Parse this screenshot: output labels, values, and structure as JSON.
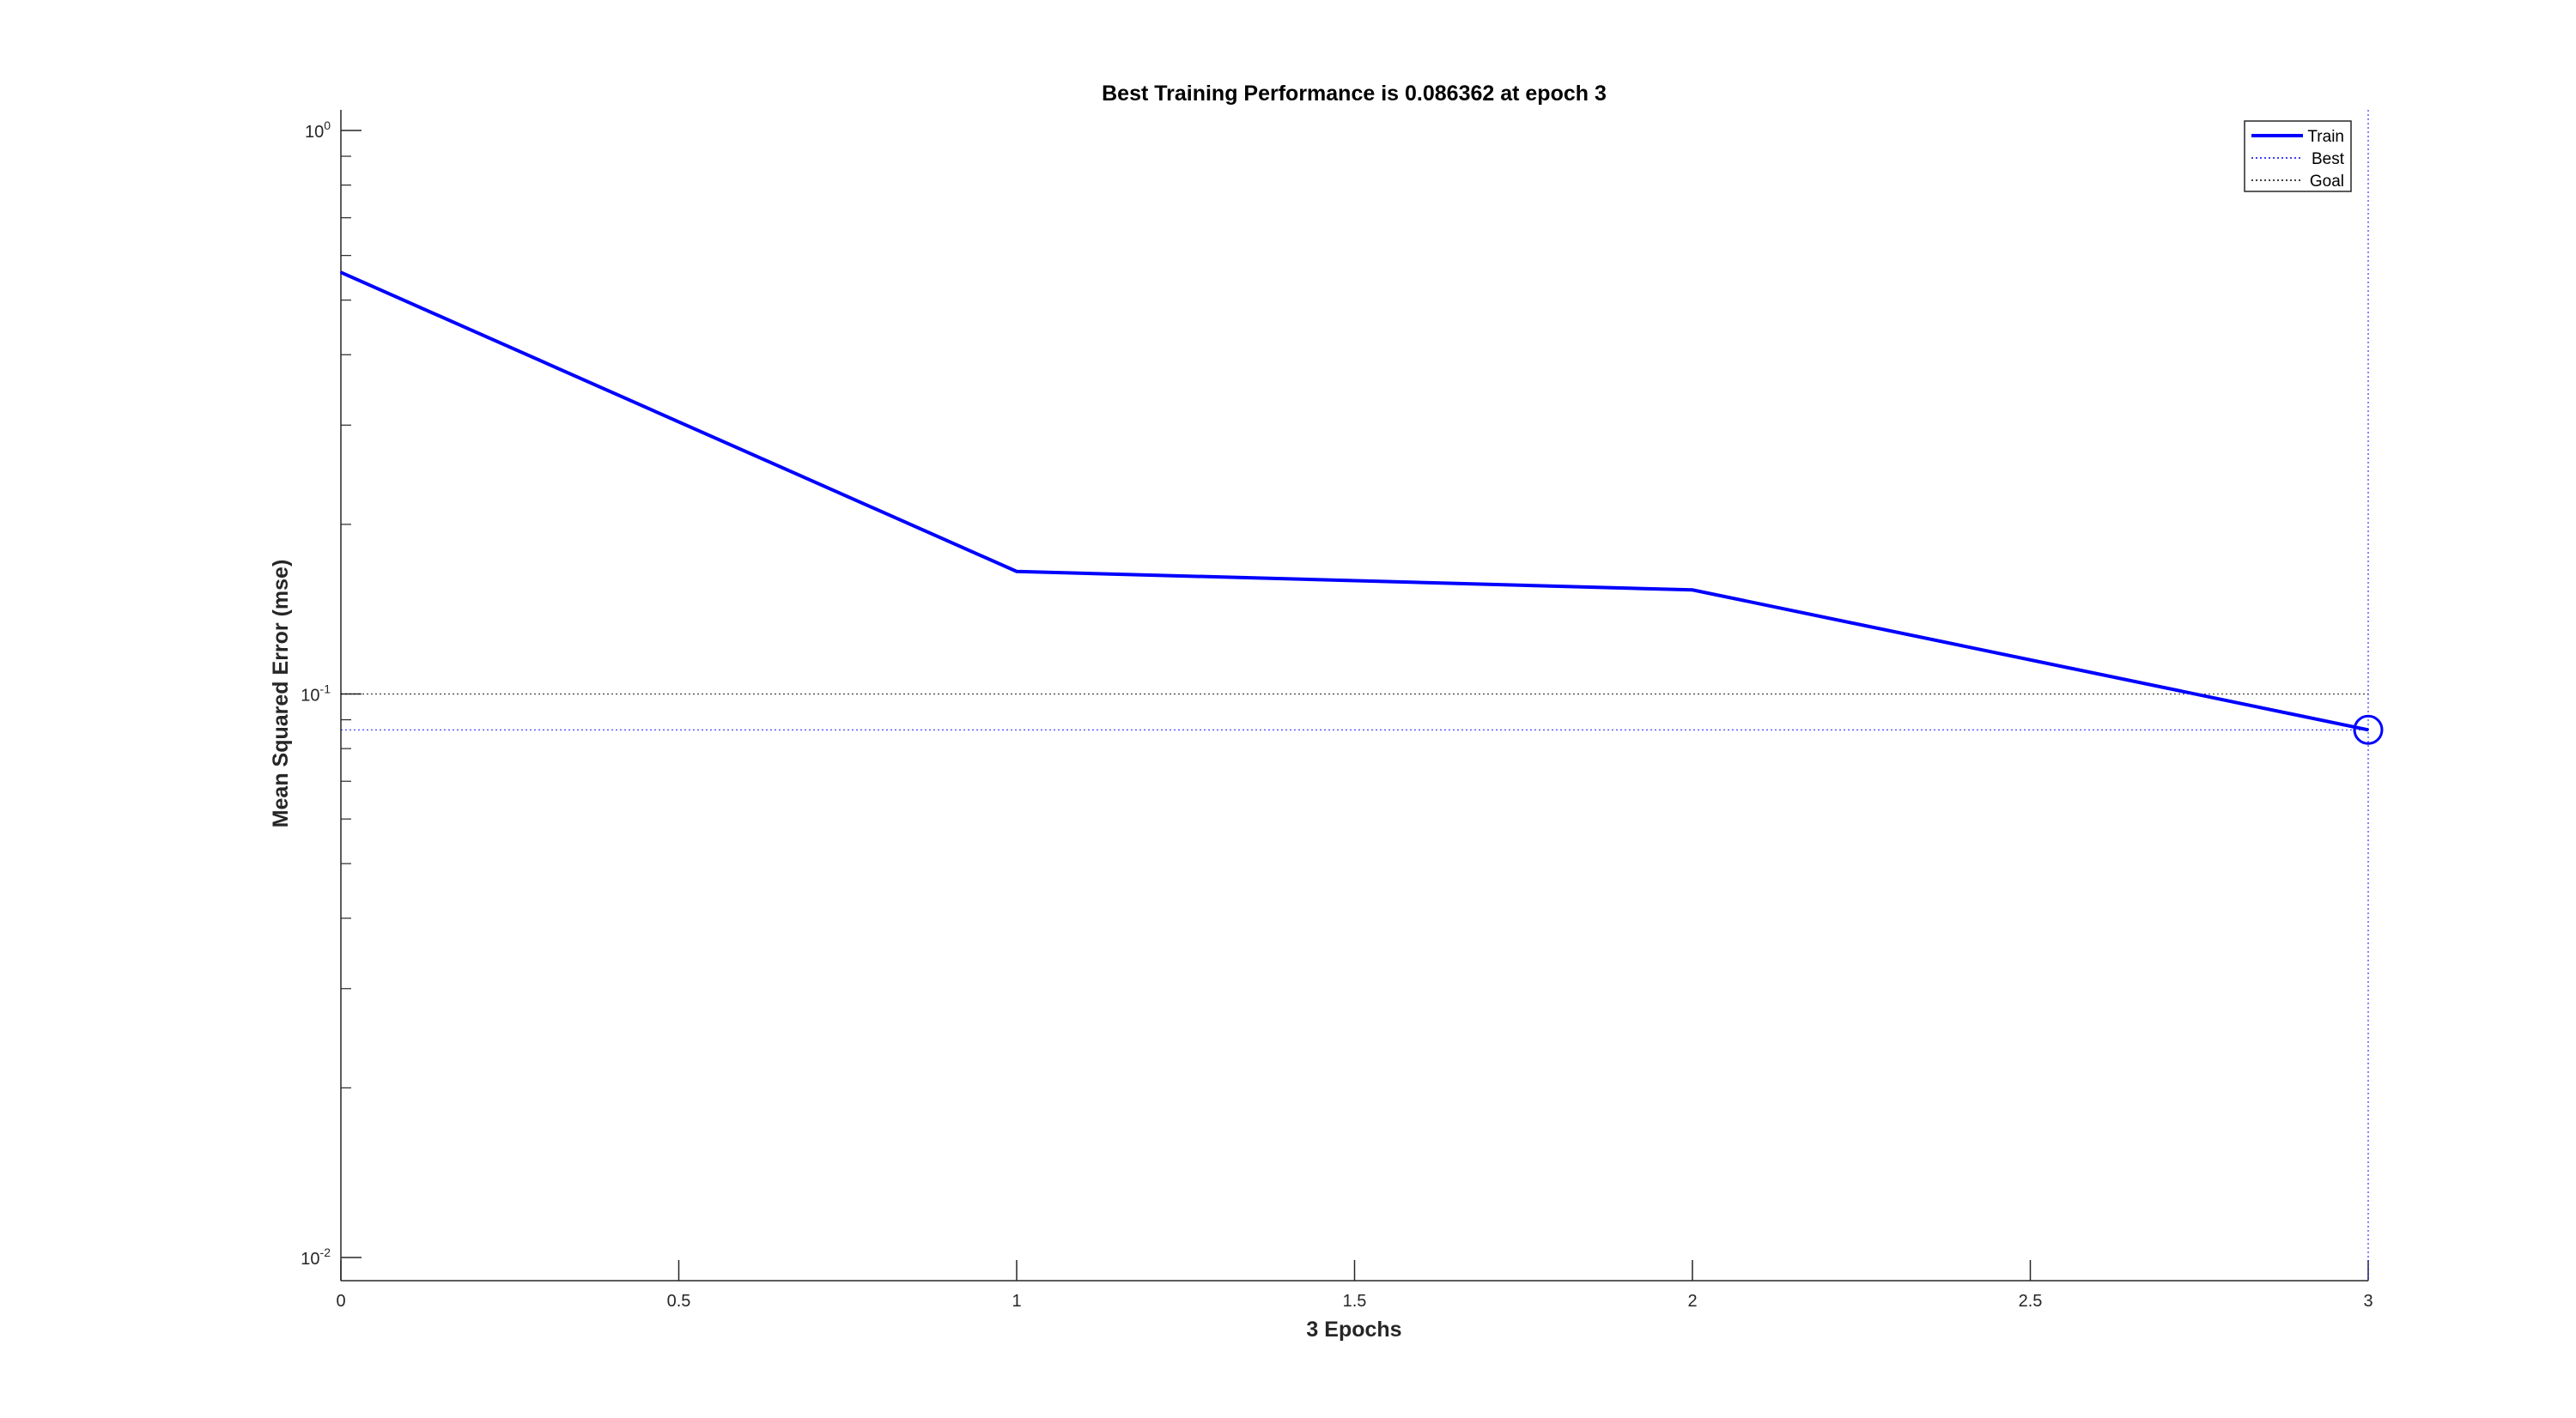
{
  "chart_data": {
    "type": "line",
    "title": "Best Training Performance is 0.086362 at epoch 3",
    "xlabel": "3 Epochs",
    "ylabel": "Mean Squared Error  (mse)",
    "xlim": [
      0,
      3
    ],
    "ylim": [
      0.01,
      1
    ],
    "yscale": "log",
    "grid": false,
    "legend_position": "top-right",
    "x_ticks": [
      "0",
      "0.5",
      "1",
      "1.5",
      "2",
      "2.5",
      "3"
    ],
    "y_ticks": [
      {
        "base": "10",
        "exp": "0",
        "value": 1
      },
      {
        "base": "10",
        "exp": "-1",
        "value": 0.1
      },
      {
        "base": "10",
        "exp": "-2",
        "value": 0.01
      }
    ],
    "series": [
      {
        "name": "Train",
        "style": "solid",
        "color": "#0000ff",
        "x": [
          0,
          1,
          2,
          3
        ],
        "y": [
          0.56,
          0.165,
          0.153,
          0.086362
        ]
      },
      {
        "name": "Best",
        "style": "dotted",
        "color": "#0000ff",
        "best_epoch": 3,
        "best_value": 0.086362
      },
      {
        "name": "Goal",
        "style": "dotted",
        "color": "#000000",
        "value": 0.1
      }
    ]
  }
}
